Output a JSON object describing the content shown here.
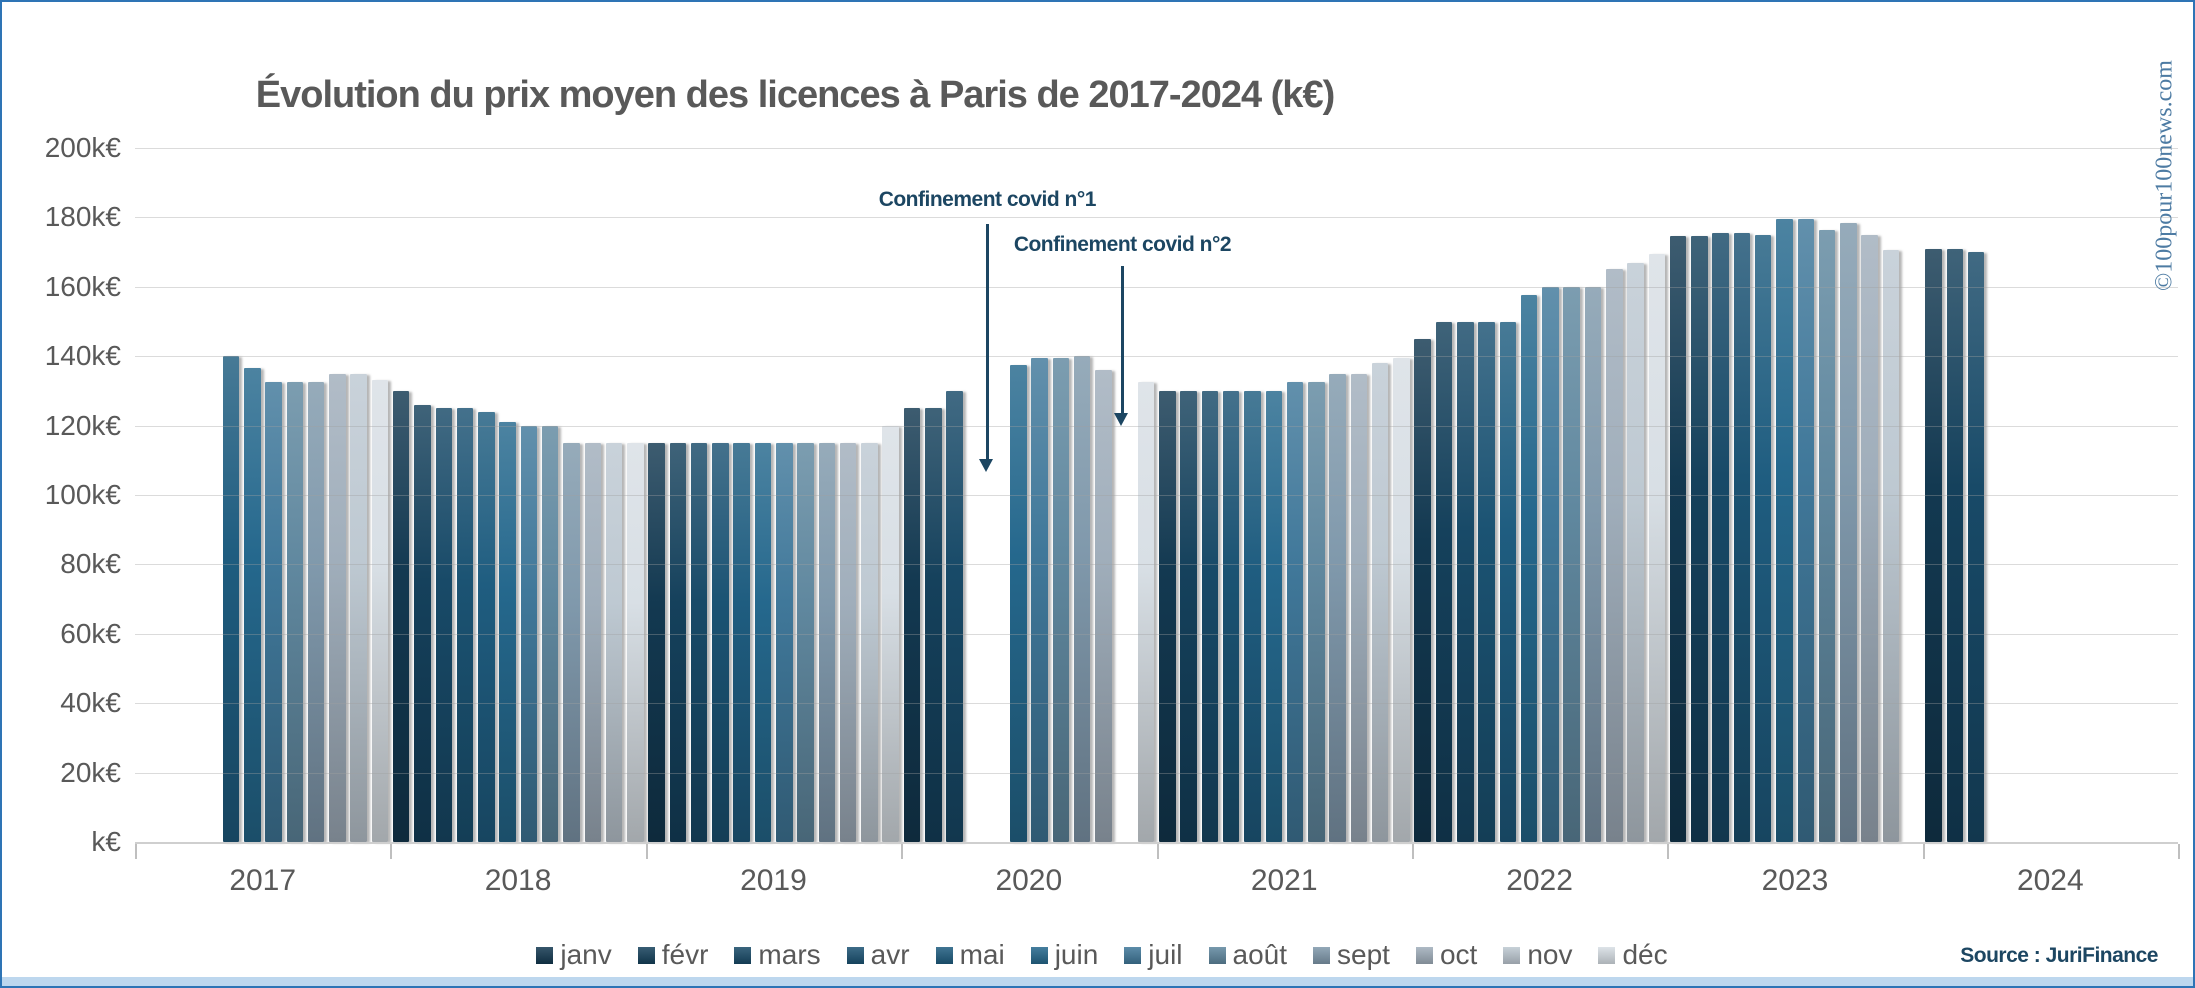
{
  "title": "Évolution du prix moyen des licences à Paris de 2017-2024 (k€)",
  "watermark": "©100pour100news.com",
  "source_label": "Source : JuriFinance",
  "colors": {
    "accent_navy": "#1c4662",
    "text_gray": "#595959",
    "grid": "#d9d9d9",
    "axis_gray": "#cfcfcf",
    "border_blue": "#2e74b5",
    "bottom_strip_blue": "#bdd7ee",
    "copyright_blue": "#4d7ba3"
  },
  "chart_data": {
    "type": "bar",
    "title": "Évolution du prix moyen des licences à Paris de 2017-2024 (k€)",
    "xlabel": "",
    "ylabel": "",
    "ylim": [
      0,
      200
    ],
    "ytick_step": 20,
    "ytick_labels": [
      "k€",
      "20k€",
      "40k€",
      "60k€",
      "80k€",
      "100k€",
      "120k€",
      "140k€",
      "160k€",
      "180k€",
      "200k€"
    ],
    "grid": true,
    "legend_position": "bottom",
    "categories": [
      "2017",
      "2018",
      "2019",
      "2020",
      "2021",
      "2022",
      "2023",
      "2024"
    ],
    "months": [
      "janv",
      "févr",
      "mars",
      "avr",
      "mai",
      "juin",
      "juil",
      "août",
      "sept",
      "oct",
      "nov",
      "déc"
    ],
    "month_colors": [
      "#133951",
      "#15415c",
      "#184a68",
      "#1b5373",
      "#1f5d80",
      "#25688d",
      "#40789a",
      "#60889f",
      "#8099ac",
      "#a0aebb",
      "#bec9d2",
      "#d8dfe5"
    ],
    "series": [
      {
        "year": "2017",
        "values": [
          null,
          null,
          null,
          null,
          140,
          136.5,
          132.5,
          132.5,
          132.5,
          135,
          135,
          133
        ]
      },
      {
        "year": "2018",
        "values": [
          130,
          126,
          125,
          125,
          124,
          121,
          120,
          120,
          115,
          115,
          115,
          115
        ]
      },
      {
        "year": "2019",
        "values": [
          115,
          115,
          115,
          115,
          115,
          115,
          115,
          115,
          115,
          115,
          115,
          120
        ]
      },
      {
        "year": "2020",
        "values": [
          125,
          125,
          130,
          null,
          null,
          137.5,
          139.5,
          139.5,
          140,
          136,
          null,
          132.5
        ]
      },
      {
        "year": "2021",
        "values": [
          130,
          130,
          130,
          130,
          130,
          130,
          132.5,
          132.5,
          135,
          135,
          138,
          139.5
        ]
      },
      {
        "year": "2022",
        "values": [
          145,
          150,
          150,
          150,
          150,
          157.5,
          160,
          160,
          160,
          165,
          167,
          169.5
        ]
      },
      {
        "year": "2023",
        "values": [
          174.5,
          174.5,
          175.5,
          175.5,
          175,
          179.5,
          179.5,
          176.5,
          178.5,
          175,
          170.5,
          null
        ]
      },
      {
        "year": "2024",
        "values": [
          171,
          171,
          170,
          null,
          null,
          null,
          null,
          null,
          null,
          null,
          null,
          null
        ]
      }
    ],
    "annotations": [
      {
        "text": "Confinement covid n°1",
        "year_index": 3,
        "slot": 4.05,
        "text_value": 185,
        "from_value": 178,
        "tip_value": 106.5
      },
      {
        "text": "Confinement covid n°2",
        "year_index": 3,
        "slot": 10.4,
        "text_value": 172,
        "from_value": 166,
        "tip_value": 120
      }
    ]
  }
}
